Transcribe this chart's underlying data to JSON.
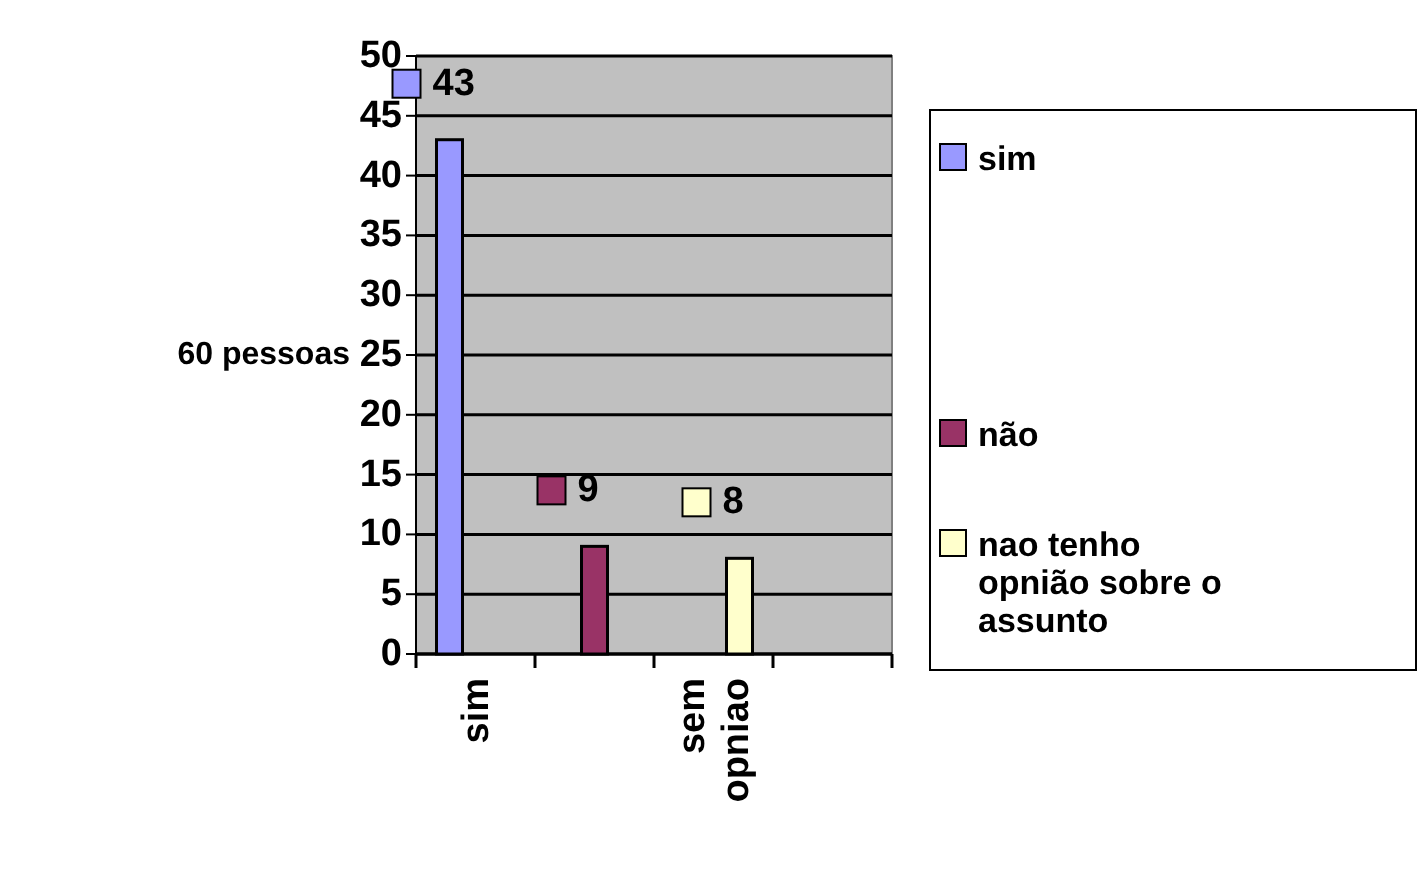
{
  "chart_data": {
    "type": "bar",
    "ylabel": "60 pessoas",
    "categories": [
      "sim",
      null,
      "sem opniao",
      null
    ],
    "series": [
      {
        "name": "sim",
        "color": "#9999ff",
        "values": [
          43,
          null,
          null,
          null
        ]
      },
      {
        "name": "não",
        "color": "#993366",
        "values": [
          null,
          9,
          null,
          null
        ]
      },
      {
        "name": "nao tenho opnião sobre o assunto",
        "color": "#ffffcc",
        "values": [
          null,
          null,
          8,
          null
        ]
      }
    ],
    "ylim": [
      0,
      50
    ],
    "yticks": [
      0,
      5,
      10,
      15,
      20,
      25,
      30,
      35,
      40,
      45,
      50
    ],
    "grid": "y",
    "legend": "right",
    "data_labels": true
  }
}
